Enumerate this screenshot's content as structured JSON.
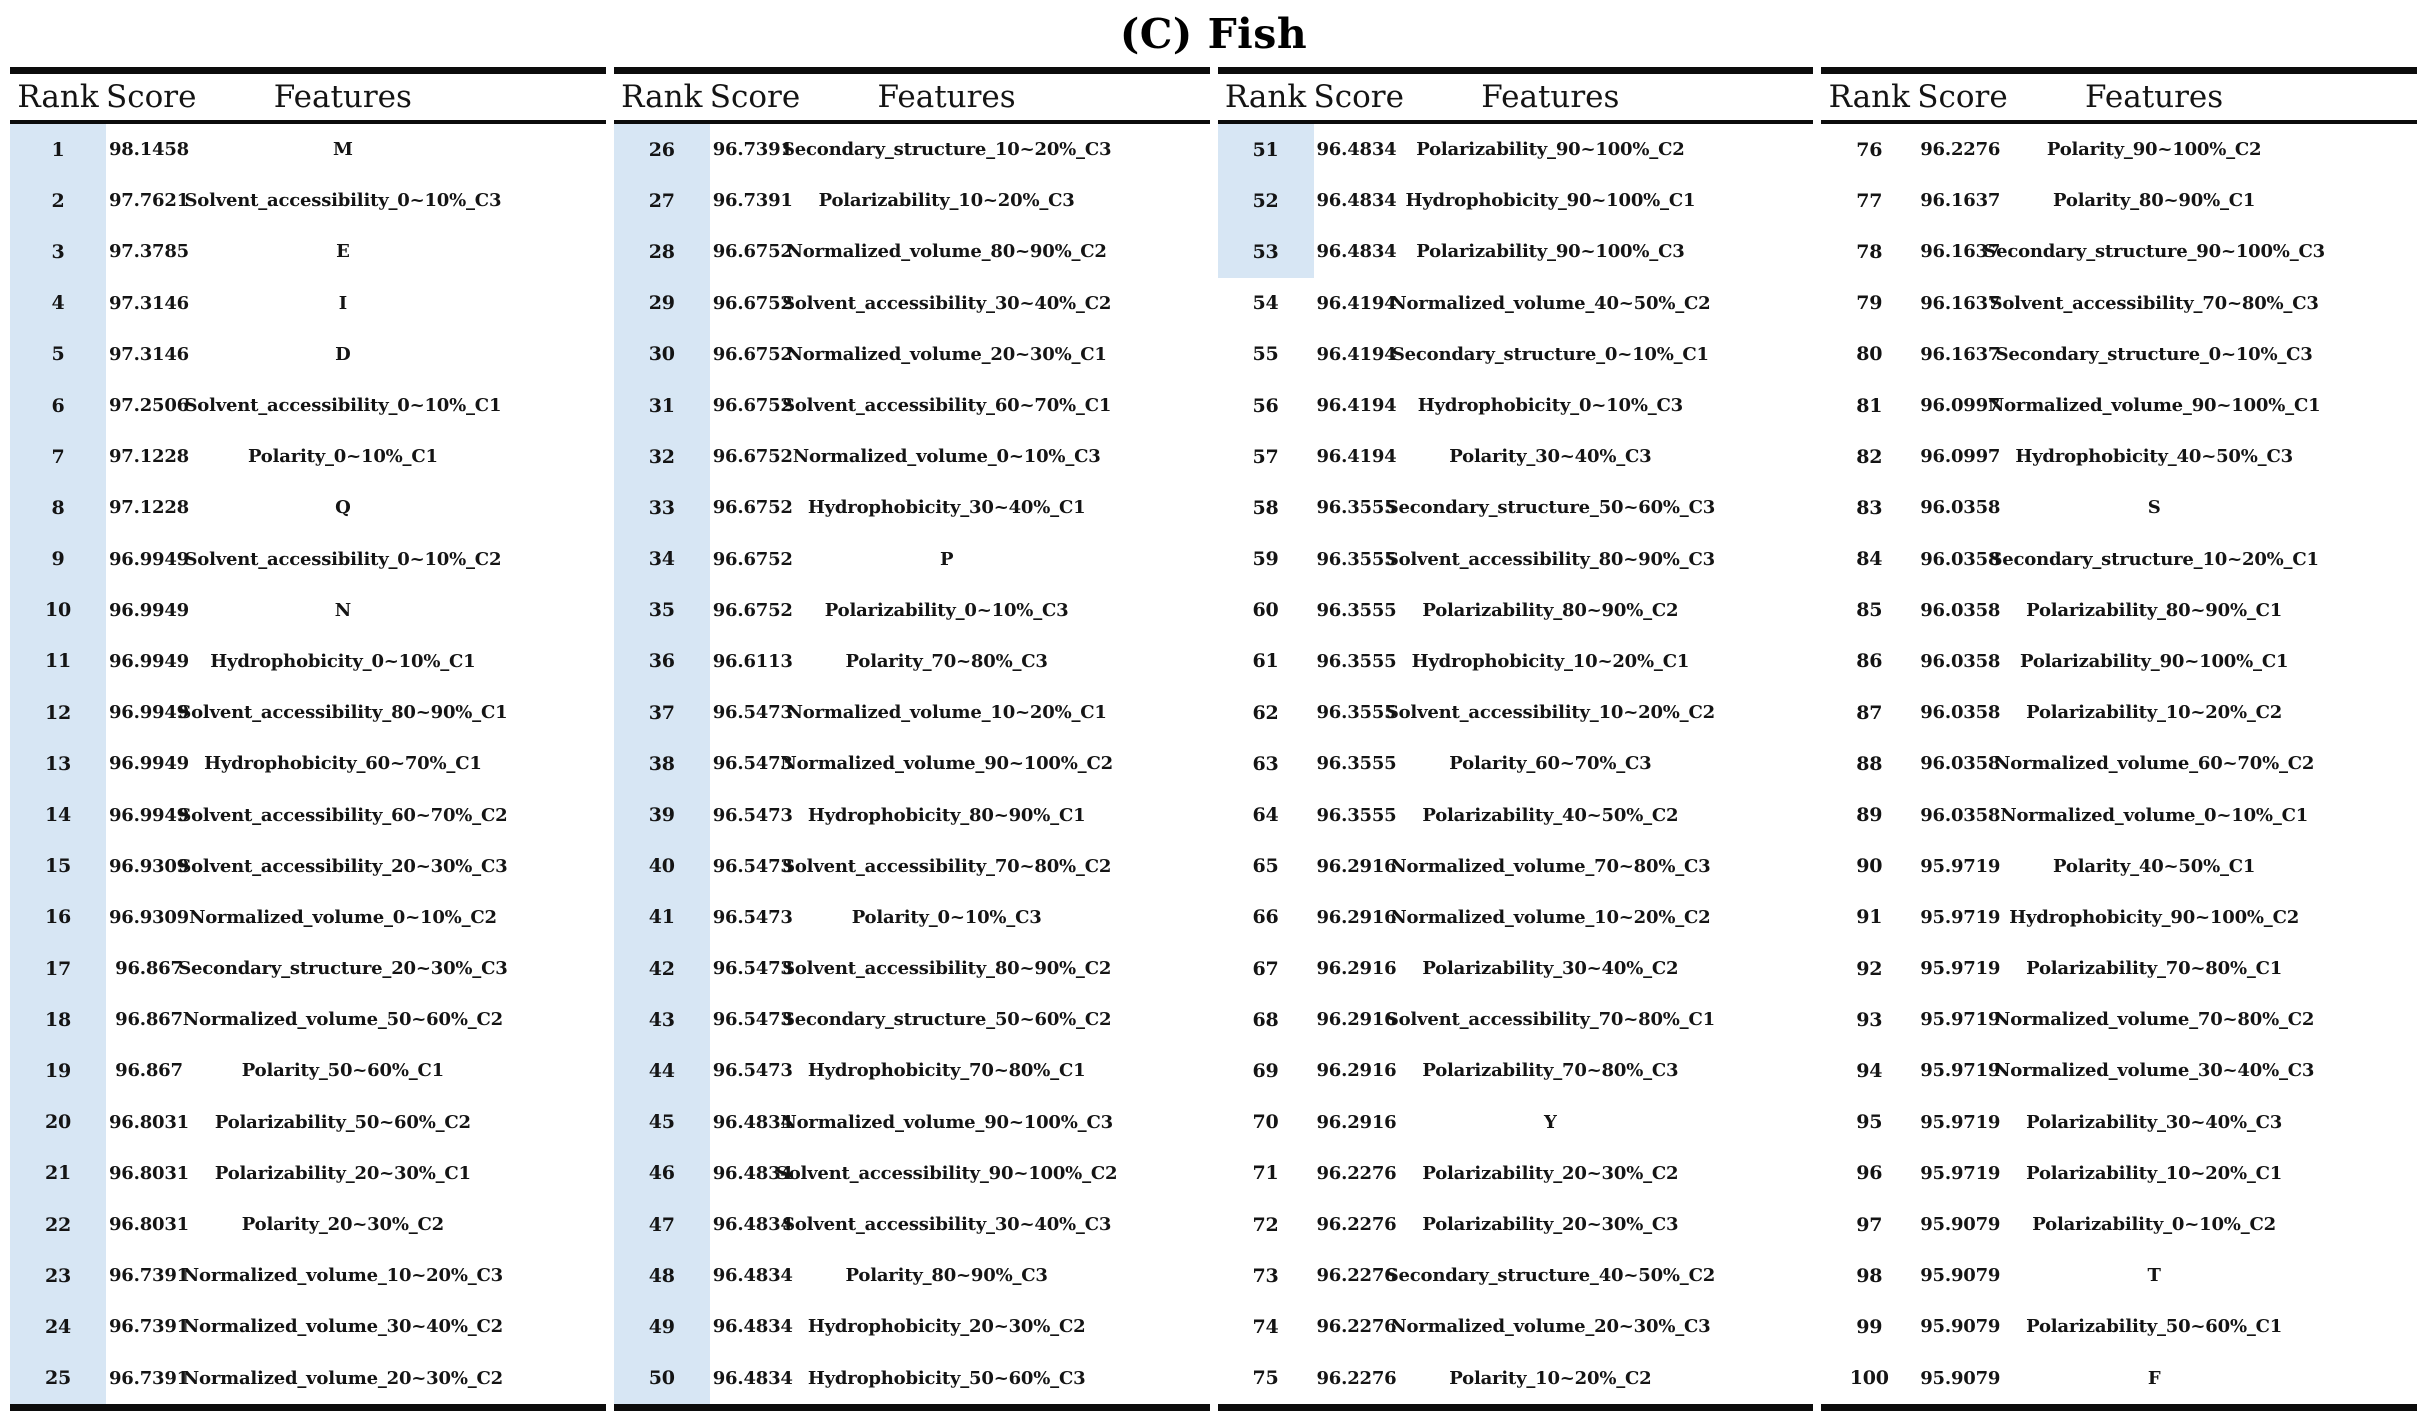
{
  "title": "(C) Fish",
  "columns": [
    "Rank",
    "Score",
    "Features"
  ],
  "colors": {
    "rank_highlight": "#d7e6f4",
    "border": "#0c0c0c",
    "text": "#141414",
    "background": "#ffffff"
  },
  "chart_data": {
    "type": "table",
    "title": "(C) Fish",
    "columns": [
      "Rank",
      "Score",
      "Features"
    ],
    "note": "100 ranked features split across four side-by-side sub-tables"
  },
  "groups": [
    {
      "highlighted_rows": 25,
      "rows": [
        [
          1,
          "98.1458",
          "M"
        ],
        [
          2,
          "97.7621",
          "Solvent_accessibility_0~10%_C3"
        ],
        [
          3,
          "97.3785",
          "E"
        ],
        [
          4,
          "97.3146",
          "I"
        ],
        [
          5,
          "97.3146",
          "D"
        ],
        [
          6,
          "97.2506",
          "Solvent_accessibility_0~10%_C1"
        ],
        [
          7,
          "97.1228",
          "Polarity_0~10%_C1"
        ],
        [
          8,
          "97.1228",
          "Q"
        ],
        [
          9,
          "96.9949",
          "Solvent_accessibility_0~10%_C2"
        ],
        [
          10,
          "96.9949",
          "N"
        ],
        [
          11,
          "96.9949",
          "Hydrophobicity_0~10%_C1"
        ],
        [
          12,
          "96.9949",
          "Solvent_accessibility_80~90%_C1"
        ],
        [
          13,
          "96.9949",
          "Hydrophobicity_60~70%_C1"
        ],
        [
          14,
          "96.9949",
          "Solvent_accessibility_60~70%_C2"
        ],
        [
          15,
          "96.9309",
          "Solvent_accessibility_20~30%_C3"
        ],
        [
          16,
          "96.9309",
          "Normalized_volume_0~10%_C2"
        ],
        [
          17,
          "96.867",
          "Secondary_structure_20~30%_C3"
        ],
        [
          18,
          "96.867",
          "Normalized_volume_50~60%_C2"
        ],
        [
          19,
          "96.867",
          "Polarity_50~60%_C1"
        ],
        [
          20,
          "96.8031",
          "Polarizability_50~60%_C2"
        ],
        [
          21,
          "96.8031",
          "Polarizability_20~30%_C1"
        ],
        [
          22,
          "96.8031",
          "Polarity_20~30%_C2"
        ],
        [
          23,
          "96.7391",
          "Normalized_volume_10~20%_C3"
        ],
        [
          24,
          "96.7391",
          "Normalized_volume_30~40%_C2"
        ],
        [
          25,
          "96.7391",
          "Normalized_volume_20~30%_C2"
        ]
      ]
    },
    {
      "highlighted_rows": 25,
      "rows": [
        [
          26,
          "96.7391",
          "Secondary_structure_10~20%_C3"
        ],
        [
          27,
          "96.7391",
          "Polarizability_10~20%_C3"
        ],
        [
          28,
          "96.6752",
          "Normalized_volume_80~90%_C2"
        ],
        [
          29,
          "96.6752",
          "Solvent_accessibility_30~40%_C2"
        ],
        [
          30,
          "96.6752",
          "Normalized_volume_20~30%_C1"
        ],
        [
          31,
          "96.6752",
          "Solvent_accessibility_60~70%_C1"
        ],
        [
          32,
          "96.6752",
          "Normalized_volume_0~10%_C3"
        ],
        [
          33,
          "96.6752",
          "Hydrophobicity_30~40%_C1"
        ],
        [
          34,
          "96.6752",
          "P"
        ],
        [
          35,
          "96.6752",
          "Polarizability_0~10%_C3"
        ],
        [
          36,
          "96.6113",
          "Polarity_70~80%_C3"
        ],
        [
          37,
          "96.5473",
          "Normalized_volume_10~20%_C1"
        ],
        [
          38,
          "96.5473",
          "Normalized_volume_90~100%_C2"
        ],
        [
          39,
          "96.5473",
          "Hydrophobicity_80~90%_C1"
        ],
        [
          40,
          "96.5473",
          "Solvent_accessibility_70~80%_C2"
        ],
        [
          41,
          "96.5473",
          "Polarity_0~10%_C3"
        ],
        [
          42,
          "96.5473",
          "Solvent_accessibility_80~90%_C2"
        ],
        [
          43,
          "96.5473",
          "Secondary_structure_50~60%_C2"
        ],
        [
          44,
          "96.5473",
          "Hydrophobicity_70~80%_C1"
        ],
        [
          45,
          "96.4834",
          "Normalized_volume_90~100%_C3"
        ],
        [
          46,
          "96.4834",
          "Solvent_accessibility_90~100%_C2"
        ],
        [
          47,
          "96.4834",
          "Solvent_accessibility_30~40%_C3"
        ],
        [
          48,
          "96.4834",
          "Polarity_80~90%_C3"
        ],
        [
          49,
          "96.4834",
          "Hydrophobicity_20~30%_C2"
        ],
        [
          50,
          "96.4834",
          "Hydrophobicity_50~60%_C3"
        ]
      ]
    },
    {
      "highlighted_rows": 3,
      "rows": [
        [
          51,
          "96.4834",
          "Polarizability_90~100%_C2"
        ],
        [
          52,
          "96.4834",
          "Hydrophobicity_90~100%_C1"
        ],
        [
          53,
          "96.4834",
          "Polarizability_90~100%_C3"
        ],
        [
          54,
          "96.4194",
          "Normalized_volume_40~50%_C2"
        ],
        [
          55,
          "96.4194",
          "Secondary_structure_0~10%_C1"
        ],
        [
          56,
          "96.4194",
          "Hydrophobicity_0~10%_C3"
        ],
        [
          57,
          "96.4194",
          "Polarity_30~40%_C3"
        ],
        [
          58,
          "96.3555",
          "Secondary_structure_50~60%_C3"
        ],
        [
          59,
          "96.3555",
          "Solvent_accessibility_80~90%_C3"
        ],
        [
          60,
          "96.3555",
          "Polarizability_80~90%_C2"
        ],
        [
          61,
          "96.3555",
          "Hydrophobicity_10~20%_C1"
        ],
        [
          62,
          "96.3555",
          "Solvent_accessibility_10~20%_C2"
        ],
        [
          63,
          "96.3555",
          "Polarity_60~70%_C3"
        ],
        [
          64,
          "96.3555",
          "Polarizability_40~50%_C2"
        ],
        [
          65,
          "96.2916",
          "Normalized_volume_70~80%_C3"
        ],
        [
          66,
          "96.2916",
          "Normalized_volume_10~20%_C2"
        ],
        [
          67,
          "96.2916",
          "Polarizability_30~40%_C2"
        ],
        [
          68,
          "96.2916",
          "Solvent_accessibility_70~80%_C1"
        ],
        [
          69,
          "96.2916",
          "Polarizability_70~80%_C3"
        ],
        [
          70,
          "96.2916",
          "Y"
        ],
        [
          71,
          "96.2276",
          "Polarizability_20~30%_C2"
        ],
        [
          72,
          "96.2276",
          "Polarizability_20~30%_C3"
        ],
        [
          73,
          "96.2276",
          "Secondary_structure_40~50%_C2"
        ],
        [
          74,
          "96.2276",
          "Normalized_volume_20~30%_C3"
        ],
        [
          75,
          "96.2276",
          "Polarity_10~20%_C2"
        ]
      ]
    },
    {
      "highlighted_rows": 0,
      "rows": [
        [
          76,
          "96.2276",
          "Polarity_90~100%_C2"
        ],
        [
          77,
          "96.1637",
          "Polarity_80~90%_C1"
        ],
        [
          78,
          "96.1637",
          "Secondary_structure_90~100%_C3"
        ],
        [
          79,
          "96.1637",
          "Solvent_accessibility_70~80%_C3"
        ],
        [
          80,
          "96.1637",
          "Secondary_structure_0~10%_C3"
        ],
        [
          81,
          "96.0997",
          "Normalized_volume_90~100%_C1"
        ],
        [
          82,
          "96.0997",
          "Hydrophobicity_40~50%_C3"
        ],
        [
          83,
          "96.0358",
          "S"
        ],
        [
          84,
          "96.0358",
          "Secondary_structure_10~20%_C1"
        ],
        [
          85,
          "96.0358",
          "Polarizability_80~90%_C1"
        ],
        [
          86,
          "96.0358",
          "Polarizability_90~100%_C1"
        ],
        [
          87,
          "96.0358",
          "Polarizability_10~20%_C2"
        ],
        [
          88,
          "96.0358",
          "Normalized_volume_60~70%_C2"
        ],
        [
          89,
          "96.0358",
          "Normalized_volume_0~10%_C1"
        ],
        [
          90,
          "95.9719",
          "Polarity_40~50%_C1"
        ],
        [
          91,
          "95.9719",
          "Hydrophobicity_90~100%_C2"
        ],
        [
          92,
          "95.9719",
          "Polarizability_70~80%_C1"
        ],
        [
          93,
          "95.9719",
          "Normalized_volume_70~80%_C2"
        ],
        [
          94,
          "95.9719",
          "Normalized_volume_30~40%_C3"
        ],
        [
          95,
          "95.9719",
          "Polarizability_30~40%_C3"
        ],
        [
          96,
          "95.9719",
          "Polarizability_10~20%_C1"
        ],
        [
          97,
          "95.9079",
          "Polarizability_0~10%_C2"
        ],
        [
          98,
          "95.9079",
          "T"
        ],
        [
          99,
          "95.9079",
          "Polarizability_50~60%_C1"
        ],
        [
          100,
          "95.9079",
          "F"
        ]
      ]
    }
  ]
}
